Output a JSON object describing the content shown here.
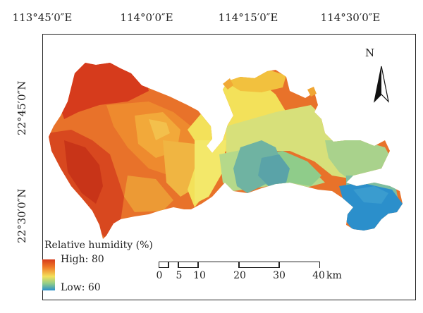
{
  "graticule": {
    "longitudes": [
      "113°45′0″E",
      "114°0′0″E",
      "114°15′0″E",
      "114°30′0″E"
    ],
    "latitudes": [
      "22°45′0″N",
      "22°30′0″N"
    ]
  },
  "north_arrow": {
    "label": "N",
    "icon": "north-arrow-icon"
  },
  "legend": {
    "title": "Relative humidity (%)",
    "high_label": "High: 80",
    "low_label": "Low: 60",
    "colors": {
      "high": "#d63b1c",
      "mid_high": "#f07b28",
      "mid": "#f3e15a",
      "mid_low": "#8fcc8a",
      "low": "#2b8fcb"
    }
  },
  "scale_bar": {
    "ticks": [
      "0",
      "5",
      "10",
      "20",
      "30",
      "40"
    ],
    "unit": "km"
  }
}
